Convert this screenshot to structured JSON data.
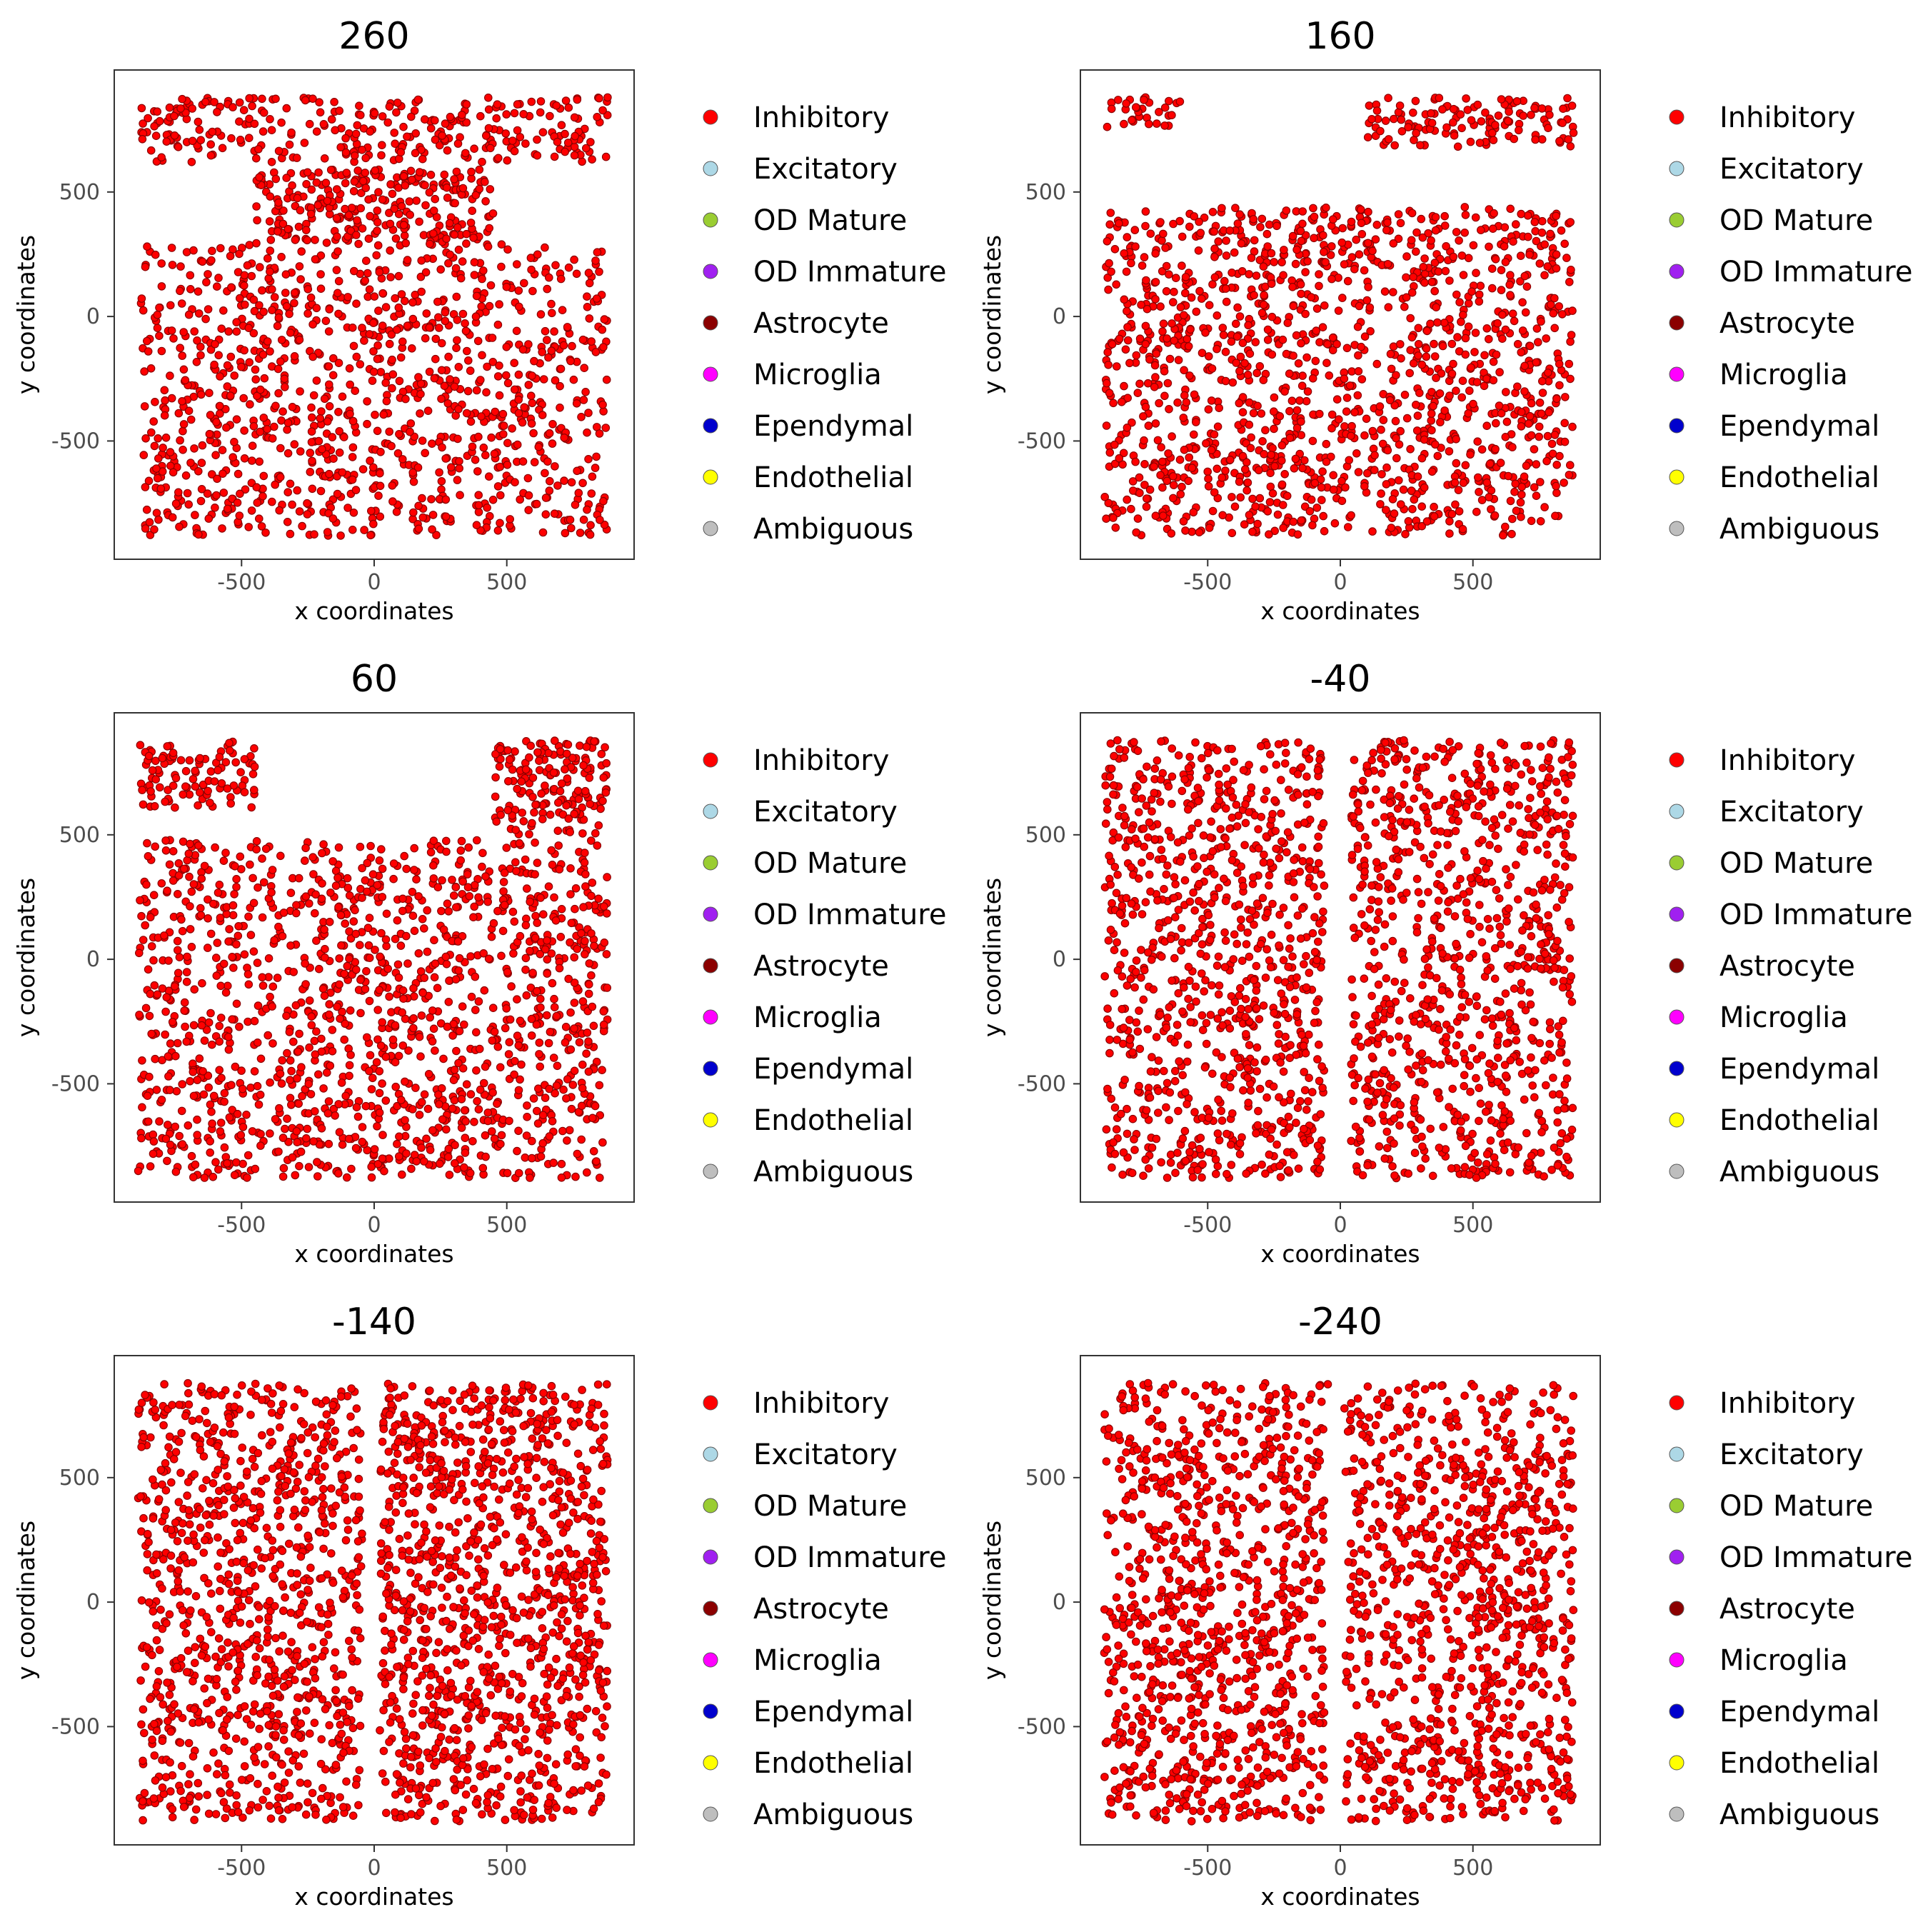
{
  "legend": {
    "items": [
      {
        "label": "Inhibitory",
        "color": "#ff0000"
      },
      {
        "label": "Excitatory",
        "color": "#add8e6"
      },
      {
        "label": "OD Mature",
        "color": "#9acd32"
      },
      {
        "label": "OD Immature",
        "color": "#a020f0"
      },
      {
        "label": "Astrocyte",
        "color": "#8b0000"
      },
      {
        "label": "Microglia",
        "color": "#ff00ff"
      },
      {
        "label": "Ependymal",
        "color": "#0000cd"
      },
      {
        "label": "Endothelial",
        "color": "#ffff00"
      },
      {
        "label": "Ambiguous",
        "color": "#bebebe"
      }
    ]
  },
  "chart_data": [
    {
      "type": "scatter",
      "title": "260",
      "xlabel": "x coordinates",
      "ylabel": "y coordinates",
      "xlim": [
        -980,
        980
      ],
      "ylim": [
        -975,
        990
      ],
      "xticks": [
        -500,
        0,
        500
      ],
      "yticks": [
        -500,
        0,
        500
      ],
      "point_color": "#ff0000",
      "point_edge": "#8b0000",
      "grid": false,
      "n_points_approx": 1700,
      "series": [
        {
          "name": "Inhibitory",
          "regions": [
            {
              "x": [
                -880,
                880
              ],
              "y": [
                620,
                880
              ],
              "weight": 0.18
            },
            {
              "x": [
                -880,
                880
              ],
              "y": [
                -880,
                290
              ],
              "weight": 0.66
            },
            {
              "x": [
                -450,
                450
              ],
              "y": [
                290,
                590
              ],
              "weight": 0.16
            }
          ]
        }
      ]
    },
    {
      "type": "scatter",
      "title": "160",
      "xlabel": "x coordinates",
      "ylabel": "y coordinates",
      "xlim": [
        -980,
        980
      ],
      "ylim": [
        -975,
        990
      ],
      "xticks": [
        -500,
        0,
        500
      ],
      "yticks": [
        -500,
        0,
        500
      ],
      "point_color": "#ff0000",
      "point_edge": "#8b0000",
      "grid": false,
      "n_points_approx": 1600,
      "series": [
        {
          "name": "Inhibitory",
          "regions": [
            {
              "x": [
                -890,
                -600
              ],
              "y": [
                760,
                880
              ],
              "weight": 0.02
            },
            {
              "x": [
                100,
                880
              ],
              "y": [
                680,
                880
              ],
              "weight": 0.08
            },
            {
              "x": [
                -890,
                880
              ],
              "y": [
                -880,
                440
              ],
              "weight": 0.9
            }
          ]
        }
      ]
    },
    {
      "type": "scatter",
      "title": "60",
      "xlabel": "x coordinates",
      "ylabel": "y coordinates",
      "xlim": [
        -980,
        980
      ],
      "ylim": [
        -975,
        990
      ],
      "xticks": [
        -500,
        0,
        500
      ],
      "yticks": [
        -500,
        0,
        500
      ],
      "point_color": "#ff0000",
      "point_edge": "#8b0000",
      "grid": false,
      "n_points_approx": 1700,
      "series": [
        {
          "name": "Inhibitory",
          "regions": [
            {
              "x": [
                -890,
                -450
              ],
              "y": [
                600,
                880
              ],
              "weight": 0.06
            },
            {
              "x": [
                450,
                880
              ],
              "y": [
                500,
                880
              ],
              "weight": 0.1
            },
            {
              "x": [
                -890,
                880
              ],
              "y": [
                -880,
                480
              ],
              "weight": 0.84
            }
          ]
        }
      ]
    },
    {
      "type": "scatter",
      "title": "-40",
      "xlabel": "x coordinates",
      "ylabel": "y coordinates",
      "xlim": [
        -980,
        980
      ],
      "ylim": [
        -975,
        990
      ],
      "xticks": [
        -500,
        0,
        500
      ],
      "yticks": [
        -500,
        0,
        500
      ],
      "point_color": "#ff0000",
      "point_edge": "#8b0000",
      "grid": false,
      "n_points_approx": 1800,
      "series": [
        {
          "name": "Inhibitory",
          "regions": [
            {
              "x": [
                -890,
                -60
              ],
              "y": [
                -880,
                880
              ],
              "weight": 0.5
            },
            {
              "x": [
                40,
                880
              ],
              "y": [
                -880,
                880
              ],
              "weight": 0.5
            }
          ]
        }
      ]
    },
    {
      "type": "scatter",
      "title": "-140",
      "xlabel": "x coordinates",
      "ylabel": "y coordinates",
      "xlim": [
        -980,
        980
      ],
      "ylim": [
        -975,
        990
      ],
      "xticks": [
        -500,
        0,
        500
      ],
      "yticks": [
        -500,
        0,
        500
      ],
      "point_color": "#ff0000",
      "point_edge": "#8b0000",
      "grid": false,
      "n_points_approx": 2100,
      "series": [
        {
          "name": "Inhibitory",
          "regions": [
            {
              "x": [
                -890,
                -40
              ],
              "y": [
                -880,
                880
              ],
              "weight": 0.46
            },
            {
              "x": [
                20,
                880
              ],
              "y": [
                -880,
                880
              ],
              "weight": 0.54
            }
          ]
        }
      ]
    },
    {
      "type": "scatter",
      "title": "-240",
      "xlabel": "x coordinates",
      "ylabel": "y coordinates",
      "xlim": [
        -980,
        980
      ],
      "ylim": [
        -975,
        990
      ],
      "xticks": [
        -500,
        0,
        500
      ],
      "yticks": [
        -500,
        0,
        500
      ],
      "point_color": "#ff0000",
      "point_edge": "#8b0000",
      "grid": false,
      "n_points_approx": 1900,
      "series": [
        {
          "name": "Inhibitory",
          "regions": [
            {
              "x": [
                -890,
                -60
              ],
              "y": [
                -880,
                700
              ],
              "weight": 0.46
            },
            {
              "x": [
                20,
                880
              ],
              "y": [
                -880,
                700
              ],
              "weight": 0.46
            },
            {
              "x": [
                -890,
                880
              ],
              "y": [
                700,
                880
              ],
              "weight": 0.08
            }
          ]
        }
      ]
    }
  ]
}
